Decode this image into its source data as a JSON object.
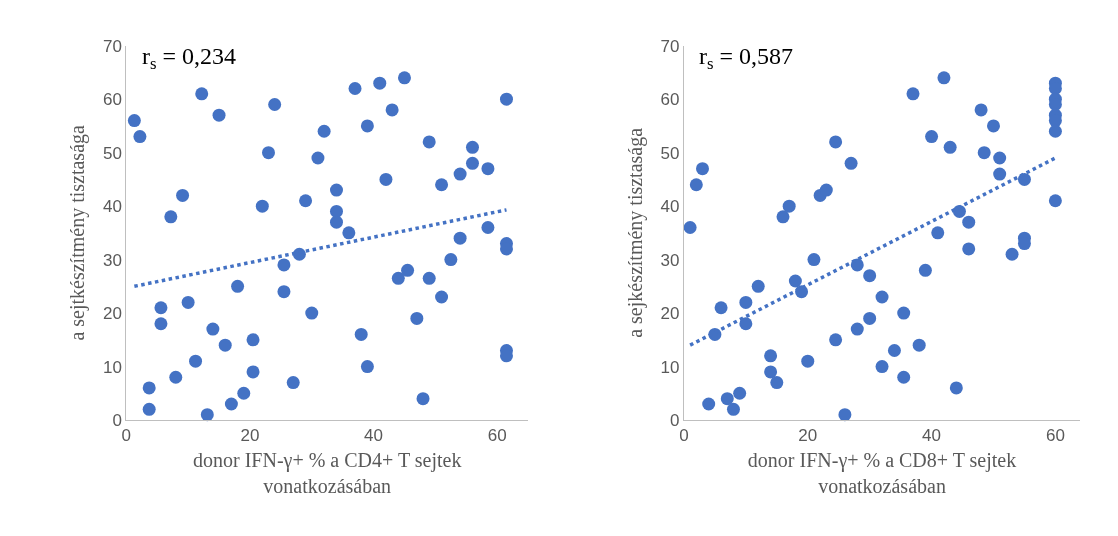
{
  "chart_data": [
    {
      "type": "scatter",
      "xlabel": "donor IFN-γ+ % a CD4+ T sejtek\nvonatkozásában",
      "ylabel": "a sejtkészítmény tisztasága",
      "annotations": [
        "r$_{s}$ = 0,234"
      ],
      "xlim": [
        0,
        65
      ],
      "ylim": [
        0,
        70
      ],
      "xticks": [
        0,
        20,
        40,
        60
      ],
      "yticks": [
        0,
        10,
        20,
        30,
        40,
        50,
        60,
        70
      ],
      "marker": "circle",
      "series": [
        {
          "color": "#4472c4",
          "x": [
            1.3,
            2.2,
            3.7,
            3.7,
            5.6,
            5.6,
            7.2,
            8,
            9.1,
            10,
            11.2,
            12.2,
            13.1,
            14,
            15,
            16,
            17,
            18,
            19,
            20.5,
            20.5,
            22,
            23,
            24,
            25.5,
            25.5,
            27,
            28,
            29,
            30,
            31,
            32,
            34,
            34,
            34,
            36,
            37,
            38,
            39,
            39,
            41,
            42,
            43,
            44,
            45,
            45.5,
            47,
            48,
            49,
            49,
            51,
            51,
            52.5,
            54,
            54,
            56,
            56,
            58.5,
            58.5,
            61.5,
            61.5,
            61.5,
            61.5,
            61.5
          ],
          "values": [
            56,
            53,
            6,
            2,
            21,
            18,
            38,
            8,
            42,
            22,
            11,
            61,
            1,
            17,
            57,
            14,
            3,
            25,
            5,
            9,
            15,
            40,
            50,
            59,
            29,
            24,
            7,
            31,
            41,
            20,
            49,
            54,
            43,
            39,
            37,
            35,
            62,
            16,
            10,
            55,
            63,
            45,
            58,
            26.5,
            64,
            28,
            19,
            4,
            52,
            26.5,
            44,
            23,
            30,
            34,
            46,
            51,
            48,
            36,
            47,
            60,
            33,
            32,
            13,
            12
          ]
        },
        {
          "type": "line",
          "color": "#4472c4",
          "line_style": "dotted",
          "marker": "none",
          "x": [
            1.3,
            61.5
          ],
          "values": [
            25,
            39.3
          ]
        }
      ]
    },
    {
      "type": "scatter",
      "xlabel": "donor IFN-γ+ % a CD8+ T sejtek\nvonatkozásában",
      "ylabel": "a sejkészítmény tisztasága",
      "annotations": [
        "r$_{s}$ = 0,587"
      ],
      "xlim": [
        0,
        64
      ],
      "ylim": [
        0,
        70
      ],
      "xticks": [
        0,
        20,
        40,
        60
      ],
      "yticks": [
        0,
        10,
        20,
        30,
        40,
        50,
        60,
        70
      ],
      "marker": "circle",
      "series": [
        {
          "color": "#4472c4",
          "x": [
            1,
            2,
            3,
            4,
            5,
            6,
            7,
            8,
            9,
            10,
            10,
            12,
            14,
            14,
            15,
            16,
            17,
            18,
            19,
            20,
            21,
            22,
            23,
            24.5,
            24.5,
            26,
            27,
            28,
            28,
            30,
            30,
            32,
            32,
            34,
            35.5,
            35.5,
            37,
            38,
            39,
            40,
            41,
            42,
            43,
            44.5,
            46,
            46,
            48,
            48.5,
            50,
            51,
            51,
            53,
            55,
            55,
            55,
            60,
            60,
            60,
            60,
            60,
            60,
            60,
            60,
            44
          ],
          "values": [
            36,
            44,
            47,
            3,
            16,
            21,
            4,
            2,
            5,
            22,
            18,
            25,
            9,
            12,
            7,
            38,
            40,
            26,
            24,
            11,
            30,
            42,
            43,
            15,
            52,
            1,
            48,
            29,
            17,
            27,
            19,
            23,
            10,
            13,
            20,
            8,
            61,
            14,
            28,
            53,
            35,
            64,
            51,
            39,
            37,
            32,
            58,
            50,
            55,
            46,
            49,
            31,
            45,
            34,
            33,
            63,
            62,
            60,
            59,
            57,
            56,
            54,
            41,
            6
          ]
        },
        {
          "type": "line",
          "color": "#4472c4",
          "line_style": "dotted",
          "marker": "none",
          "x": [
            1,
            60
          ],
          "values": [
            14,
            49
          ]
        }
      ]
    }
  ]
}
